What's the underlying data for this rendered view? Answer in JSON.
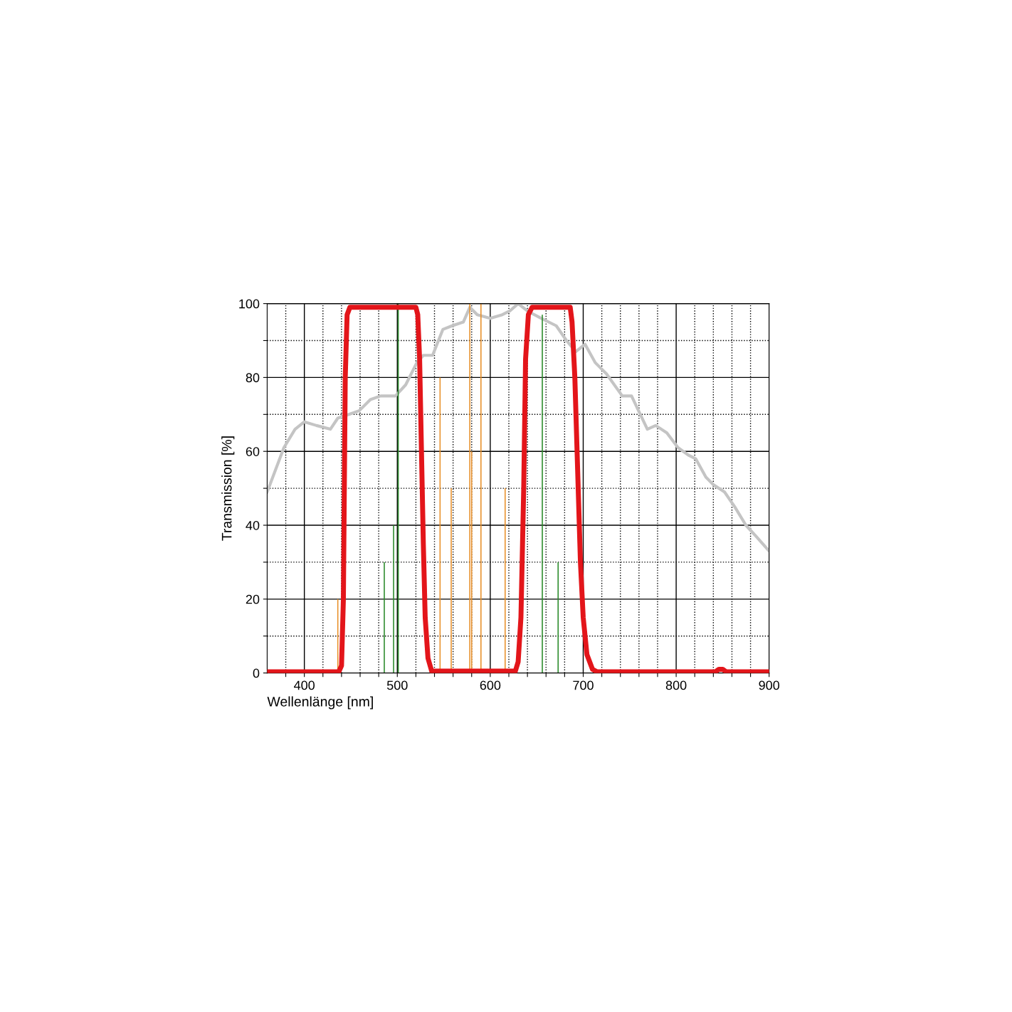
{
  "chart_data": {
    "type": "line",
    "xlabel": "Wellenlänge [nm]",
    "ylabel": "Transmission [%]",
    "xlim": [
      360,
      900
    ],
    "ylim": [
      0,
      100
    ],
    "xticks": [
      {
        "value": 380,
        "label": null
      },
      400,
      {
        "value": 420,
        "label": null
      },
      {
        "value": 440,
        "label": null
      },
      {
        "value": 460,
        "label": null
      },
      {
        "value": 480,
        "label": null
      },
      500,
      {
        "value": 520,
        "label": null
      },
      {
        "value": 540,
        "label": null
      },
      {
        "value": 560,
        "label": null
      },
      {
        "value": 580,
        "label": null
      },
      600,
      {
        "value": 620,
        "label": null
      },
      {
        "value": 640,
        "label": null
      },
      {
        "value": 660,
        "label": null
      },
      {
        "value": 680,
        "label": null
      },
      700,
      {
        "value": 720,
        "label": null
      },
      {
        "value": 740,
        "label": null
      },
      {
        "value": 760,
        "label": null
      },
      {
        "value": 780,
        "label": null
      },
      800,
      {
        "value": 820,
        "label": null
      },
      {
        "value": 840,
        "label": null
      },
      {
        "value": 860,
        "label": null
      },
      {
        "value": 880,
        "label": null
      },
      900
    ],
    "yticks": [
      0,
      {
        "value": 10,
        "label": null
      },
      20,
      {
        "value": 30,
        "label": null
      },
      40,
      {
        "value": 50,
        "label": null
      },
      60,
      {
        "value": 70,
        "label": null
      },
      80,
      {
        "value": 90,
        "label": null
      },
      100
    ],
    "grid": true,
    "series": [
      {
        "color": "#c4c4c4",
        "x": [
          360,
          378,
          390,
          400,
          413,
          428,
          436,
          448,
          459,
          471,
          482,
          498,
          509,
          521,
          528,
          538,
          549,
          559,
          571,
          578,
          586,
          600,
          613,
          621,
          630,
          640,
          655,
          671,
          682,
          692,
          702,
          713,
          725,
          742,
          752,
          769,
          778,
          790,
          802,
          813,
          821,
          832,
          840,
          852,
          863,
          875,
          886,
          900
        ],
        "values": [
          49,
          61,
          66,
          68,
          67,
          66,
          69,
          70,
          71,
          74,
          75,
          75,
          78,
          84,
          86,
          86,
          93,
          94,
          95,
          99,
          97,
          96,
          97,
          98,
          100,
          98,
          96,
          94,
          90,
          87,
          89,
          84,
          81,
          75,
          75,
          66,
          67,
          65,
          61,
          59,
          58,
          53,
          51,
          49,
          45,
          40,
          37,
          33
        ]
      },
      {
        "type": "bar",
        "color": "#e8902a",
        "x": [
          436,
          546,
          558,
          578,
          580,
          590,
          616
        ],
        "values": [
          20,
          80,
          50,
          100,
          60,
          100,
          50
        ]
      },
      {
        "type": "bar",
        "color": "#2a8a2a",
        "x": [
          486,
          496,
          501,
          656,
          673
        ],
        "values": [
          30,
          40,
          100,
          97,
          30
        ]
      },
      {
        "color": "#e3151a",
        "x": [
          360,
          437,
          440,
          442,
          443,
          444,
          446,
          449,
          520,
          522,
          524,
          526,
          528,
          530,
          533,
          537,
          627,
          630,
          633,
          636,
          638,
          641,
          645,
          686,
          688,
          691,
          694,
          697,
          700,
          704,
          710,
          715,
          842,
          846,
          850,
          854,
          900
        ],
        "values": [
          0.3,
          0.3,
          2,
          20,
          50,
          80,
          97,
          99,
          99,
          97,
          85,
          60,
          35,
          15,
          4,
          0.5,
          0.5,
          3,
          15,
          50,
          85,
          97,
          99,
          99,
          95,
          80,
          55,
          30,
          15,
          5,
          1,
          0.3,
          0.3,
          1,
          1,
          0.3,
          0.3
        ]
      }
    ]
  }
}
